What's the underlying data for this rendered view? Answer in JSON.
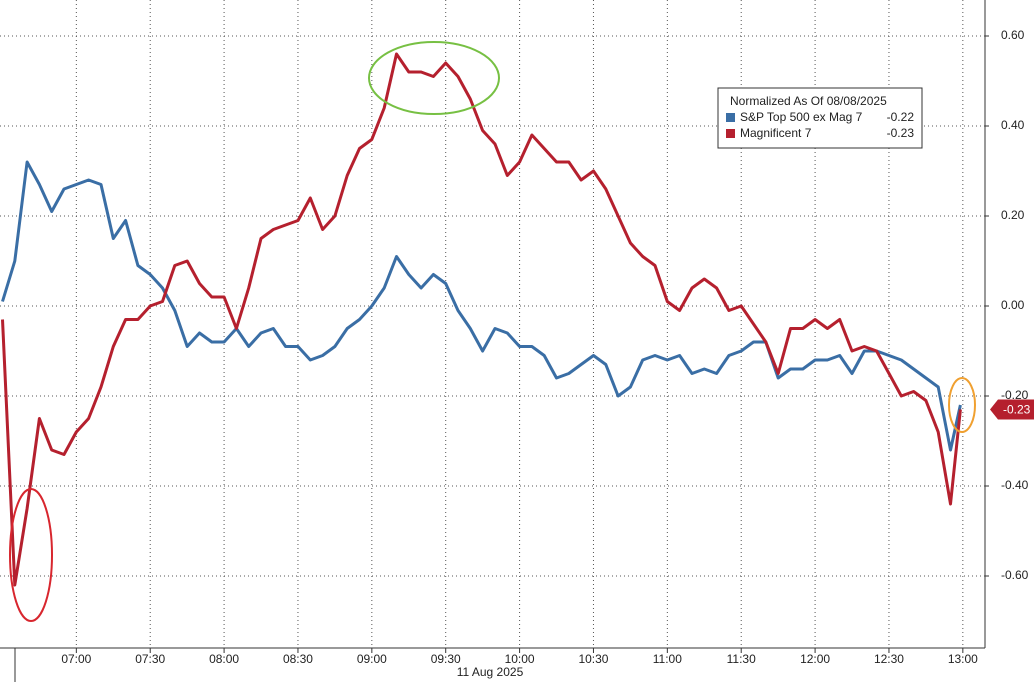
{
  "chart_data": {
    "type": "line",
    "legend_title": "Normalized As Of 08/08/2025",
    "x_label": "11 Aug 2025",
    "x": [
      "06:30",
      "06:35",
      "06:40",
      "06:45",
      "06:50",
      "06:55",
      "07:00",
      "07:05",
      "07:10",
      "07:15",
      "07:20",
      "07:25",
      "07:30",
      "07:35",
      "07:40",
      "07:45",
      "07:50",
      "07:55",
      "08:00",
      "08:05",
      "08:10",
      "08:15",
      "08:20",
      "08:25",
      "08:30",
      "08:35",
      "08:40",
      "08:45",
      "08:50",
      "08:55",
      "09:00",
      "09:05",
      "09:10",
      "09:15",
      "09:20",
      "09:25",
      "09:30",
      "09:35",
      "09:40",
      "09:45",
      "09:50",
      "09:55",
      "10:00",
      "10:05",
      "10:10",
      "10:15",
      "10:20",
      "10:25",
      "10:30",
      "10:35",
      "10:40",
      "10:45",
      "10:50",
      "10:55",
      "11:00",
      "11:05",
      "11:10",
      "11:15",
      "11:20",
      "11:25",
      "11:30",
      "11:35",
      "11:40",
      "11:45",
      "11:50",
      "11:55",
      "12:00",
      "12:05",
      "12:10",
      "12:15",
      "12:20",
      "12:25",
      "12:30",
      "12:35",
      "12:40",
      "12:45",
      "12:50",
      "12:55",
      "12:59"
    ],
    "series": [
      {
        "name": "S&P Top 500 ex Mag 7",
        "color": "#3a6ea5",
        "values": [
          0.01,
          0.1,
          0.32,
          0.27,
          0.21,
          0.26,
          0.27,
          0.28,
          0.27,
          0.15,
          0.19,
          0.09,
          0.07,
          0.04,
          -0.01,
          -0.09,
          -0.06,
          -0.08,
          -0.08,
          -0.05,
          -0.09,
          -0.06,
          -0.05,
          -0.09,
          -0.09,
          -0.12,
          -0.11,
          -0.09,
          -0.05,
          -0.03,
          0.0,
          0.04,
          0.11,
          0.07,
          0.04,
          0.07,
          0.05,
          -0.01,
          -0.05,
          -0.1,
          -0.05,
          -0.06,
          -0.09,
          -0.09,
          -0.11,
          -0.16,
          -0.15,
          -0.13,
          -0.11,
          -0.13,
          -0.2,
          -0.18,
          -0.12,
          -0.11,
          -0.12,
          -0.11,
          -0.15,
          -0.14,
          -0.15,
          -0.11,
          -0.1,
          -0.08,
          -0.08,
          -0.16,
          -0.14,
          -0.14,
          -0.12,
          -0.12,
          -0.11,
          -0.15,
          -0.1,
          -0.1,
          -0.11,
          -0.12,
          -0.14,
          -0.16,
          -0.18,
          -0.32,
          -0.22
        ]
      },
      {
        "name": "Magnificent 7",
        "color": "#b5202e",
        "values": [
          -0.03,
          -0.62,
          -0.45,
          -0.25,
          -0.32,
          -0.33,
          -0.28,
          -0.25,
          -0.18,
          -0.09,
          -0.03,
          -0.03,
          0.0,
          0.01,
          0.09,
          0.1,
          0.05,
          0.02,
          0.02,
          -0.05,
          0.04,
          0.15,
          0.17,
          0.18,
          0.19,
          0.24,
          0.17,
          0.2,
          0.29,
          0.35,
          0.37,
          0.44,
          0.56,
          0.52,
          0.52,
          0.51,
          0.54,
          0.51,
          0.46,
          0.39,
          0.36,
          0.29,
          0.32,
          0.38,
          0.35,
          0.32,
          0.32,
          0.28,
          0.3,
          0.26,
          0.2,
          0.14,
          0.11,
          0.09,
          0.01,
          -0.01,
          0.04,
          0.06,
          0.04,
          -0.01,
          0.0,
          -0.04,
          -0.08,
          -0.15,
          -0.05,
          -0.05,
          -0.03,
          -0.05,
          -0.03,
          -0.1,
          -0.09,
          -0.1,
          -0.15,
          -0.2,
          -0.19,
          -0.21,
          -0.28,
          -0.44,
          -0.23
        ]
      }
    ],
    "xlim": [
      "06:29",
      "13:09"
    ],
    "xticks": [
      "07:00",
      "07:30",
      "08:00",
      "08:30",
      "09:00",
      "09:30",
      "10:00",
      "10:30",
      "11:00",
      "11:30",
      "12:00",
      "12:30",
      "13:00"
    ],
    "ylim": [
      -0.76,
      0.68
    ],
    "yticks": [
      {
        "value": 0.6,
        "label": "0.60"
      },
      {
        "value": 0.4,
        "label": "0.40"
      },
      {
        "value": 0.2,
        "label": "0.20"
      },
      {
        "value": 0,
        "label": "0.00"
      },
      {
        "value": -0.2,
        "label": "-0.20"
      },
      {
        "value": -0.4,
        "label": "-0.40"
      },
      {
        "value": -0.6,
        "label": "-0.60"
      }
    ],
    "grid": true
  }
}
